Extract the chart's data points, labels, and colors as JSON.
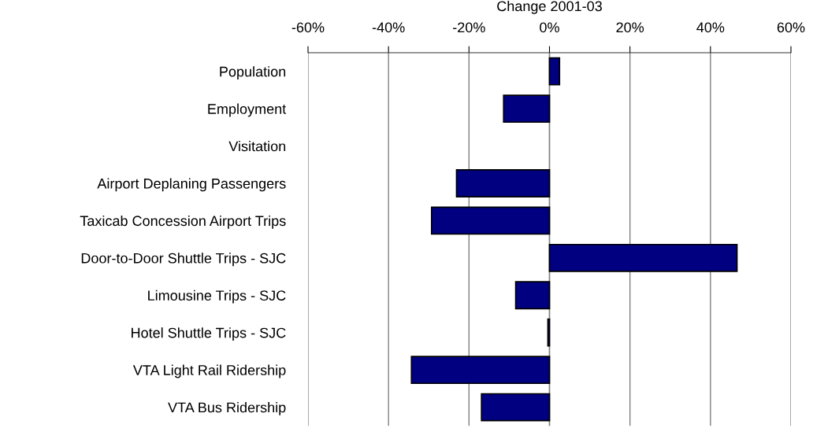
{
  "chart_data": {
    "type": "bar",
    "orientation": "horizontal",
    "xlabel": "Change 2001-03",
    "categories": [
      "Population",
      "Employment",
      "Visitation",
      "Airport Deplaning Passengers",
      "Taxicab Concession Airport Trips",
      "Door-to-Door Shuttle Trips - SJC",
      "Limousine Trips - SJC",
      "Hotel Shuttle Trips - SJC",
      "VTA Light Rail Ridership",
      "VTA Bus Ridership"
    ],
    "values": [
      2.5,
      -11.4,
      null,
      -23.1,
      -29.3,
      46.6,
      -8.4,
      -0.4,
      -34.3,
      -16.9
    ],
    "color": "#000080",
    "xlim": [
      -60,
      60
    ],
    "xticks": [
      {
        "value": -60,
        "label": "-60%"
      },
      {
        "value": -40,
        "label": "-40%"
      },
      {
        "value": -20,
        "label": "-20%"
      },
      {
        "value": 0,
        "label": "0%"
      },
      {
        "value": 20,
        "label": "20%"
      },
      {
        "value": 40,
        "label": "40%"
      },
      {
        "value": 60,
        "label": "60%"
      }
    ],
    "grid": "x",
    "legend": false
  }
}
